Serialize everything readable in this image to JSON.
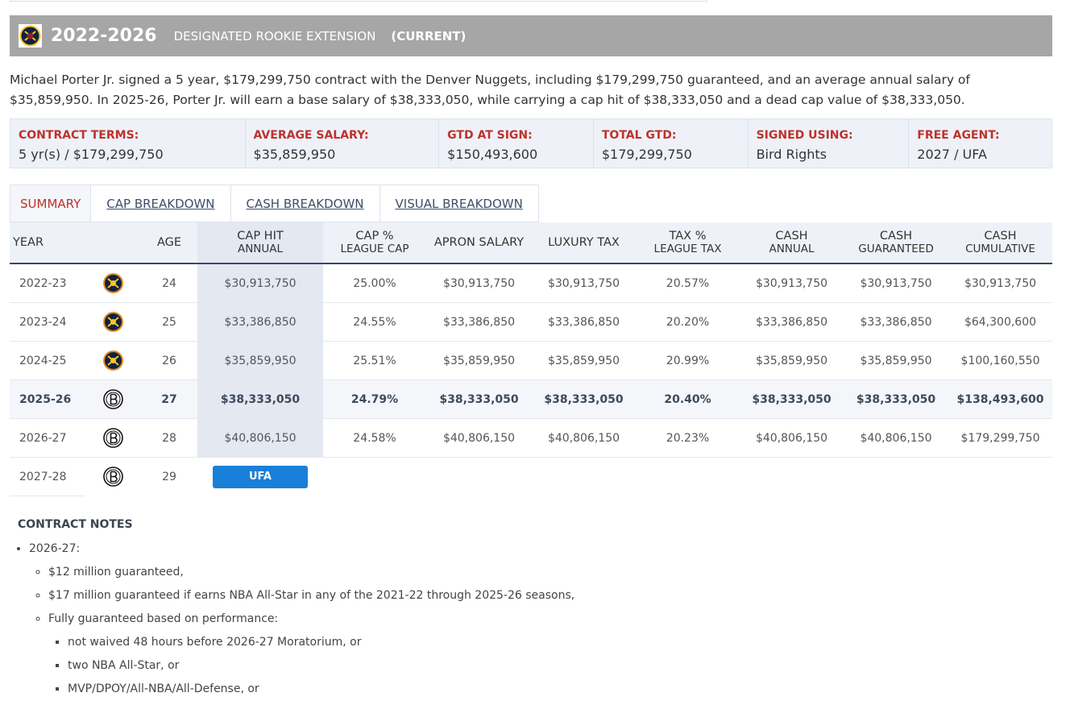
{
  "header": {
    "years": "2022-2026",
    "contract_type": "DESIGNATED ROOKIE EXTENSION",
    "status": "(CURRENT)"
  },
  "description": "Michael Porter Jr. signed a 5 year, $179,299,750 contract with the Denver Nuggets, including $179,299,750 guaranteed, and an average annual salary of $35,859,950. In 2025-26, Porter Jr. will earn a base salary of $38,333,050, while carrying a cap hit of $38,333,050 and a dead cap value of $38,333,050.",
  "terms": [
    {
      "label": "CONTRACT TERMS:",
      "value": "5 yr(s) / $179,299,750"
    },
    {
      "label": "AVERAGE SALARY:",
      "value": "$35,859,950"
    },
    {
      "label": "GTD AT SIGN:",
      "value": "$150,493,600"
    },
    {
      "label": "TOTAL GTD:",
      "value": "$179,299,750"
    },
    {
      "label": "SIGNED USING:",
      "value": "Bird Rights"
    },
    {
      "label": "FREE AGENT:",
      "value": "2027 / UFA"
    }
  ],
  "tabs": [
    "SUMMARY",
    "CAP BREAKDOWN",
    "CASH BREAKDOWN",
    "VISUAL BREAKDOWN"
  ],
  "table": {
    "year_header": "YEAR",
    "columns": [
      {
        "text": "AGE"
      },
      {
        "text": "CAP HIT",
        "sub": "ANNUAL"
      },
      {
        "text": "CAP %",
        "sub": "LEAGUE CAP"
      },
      {
        "text": "APRON SALARY"
      },
      {
        "text": "LUXURY TAX"
      },
      {
        "text": "TAX %",
        "sub": "LEAGUE TAX"
      },
      {
        "text": "CASH",
        "sub": "ANNUAL"
      },
      {
        "text": "CASH",
        "sub": "GUARANTEED"
      },
      {
        "text": "CASH",
        "sub": "CUMULATIVE"
      }
    ],
    "rows": [
      {
        "year": "2022-23",
        "cells": [
          "24",
          "$30,913,750",
          "25.00%",
          "$30,913,750",
          "$30,913,750",
          "20.57%",
          "$30,913,750",
          "$30,913,750",
          "$30,913,750"
        ]
      },
      {
        "year": "2023-24",
        "cells": [
          "25",
          "$33,386,850",
          "24.55%",
          "$33,386,850",
          "$33,386,850",
          "20.20%",
          "$33,386,850",
          "$33,386,850",
          "$64,300,600"
        ]
      },
      {
        "year": "2024-25",
        "cells": [
          "26",
          "$35,859,950",
          "25.51%",
          "$35,859,950",
          "$35,859,950",
          "20.99%",
          "$35,859,950",
          "$35,859,950",
          "$100,160,550"
        ]
      },
      {
        "year": "2025-26",
        "cells": [
          "27",
          "$38,333,050",
          "24.79%",
          "$38,333,050",
          "$38,333,050",
          "20.40%",
          "$38,333,050",
          "$38,333,050",
          "$138,493,600"
        ]
      },
      {
        "year": "2026-27",
        "cells": [
          "28",
          "$40,806,150",
          "24.58%",
          "$40,806,150",
          "$40,806,150",
          "20.23%",
          "$40,806,150",
          "$40,806,150",
          "$179,299,750"
        ]
      },
      {
        "year": "2027-28",
        "cells": [
          "29"
        ],
        "status": "UFA"
      }
    ]
  },
  "notes": {
    "title": "CONTRACT NOTES",
    "items": [
      {
        "text": "2026-27:",
        "items": [
          {
            "text": "$12 million guaranteed,"
          },
          {
            "text": "$17 million guaranteed if earns NBA All-Star in any of the 2021-22 through 2025-26 seasons,"
          },
          {
            "text": "Fully guaranteed based on performance:",
            "items": [
              {
                "text": "not waived 48 hours before 2026-27 Moratorium, or"
              },
              {
                "text": "two NBA All-Star, or"
              },
              {
                "text": "MVP/DPOY/All-NBA/All-Defense, or"
              }
            ]
          }
        ]
      }
    ]
  }
}
